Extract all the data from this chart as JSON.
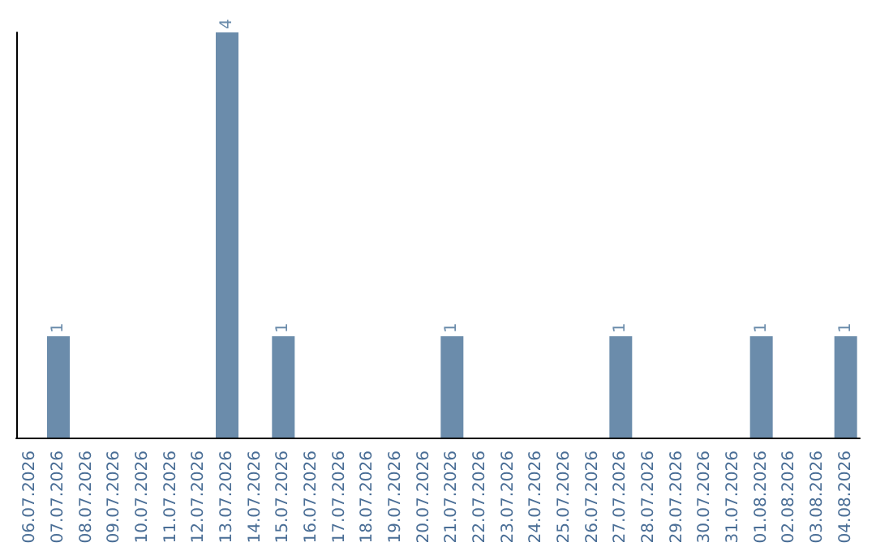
{
  "chart_data": {
    "type": "bar",
    "categories": [
      "06.07.2026",
      "07.07.2026",
      "08.07.2026",
      "09.07.2026",
      "10.07.2026",
      "11.07.2026",
      "12.07.2026",
      "13.07.2026",
      "14.07.2026",
      "15.07.2026",
      "16.07.2026",
      "17.07.2026",
      "18.07.2026",
      "19.07.2026",
      "20.07.2026",
      "21.07.2026",
      "22.07.2026",
      "23.07.2026",
      "24.07.2026",
      "25.07.2026",
      "26.07.2026",
      "27.07.2026",
      "28.07.2026",
      "29.07.2026",
      "30.07.2026",
      "31.07.2026",
      "01.08.2026",
      "02.08.2026",
      "03.08.2026",
      "04.08.2026"
    ],
    "values": [
      0,
      1,
      0,
      0,
      0,
      0,
      0,
      4,
      0,
      1,
      0,
      0,
      0,
      0,
      0,
      1,
      0,
      0,
      0,
      0,
      0,
      1,
      0,
      0,
      0,
      0,
      1,
      0,
      0,
      1
    ],
    "value_labels": [
      null,
      "1",
      null,
      null,
      null,
      null,
      null,
      "4",
      null,
      "1",
      null,
      null,
      null,
      null,
      null,
      "1",
      null,
      null,
      null,
      null,
      null,
      "1",
      null,
      null,
      null,
      null,
      "1",
      null,
      null,
      "1"
    ],
    "color": "#6b8cab",
    "tick_labels": "x",
    "grid": false
  }
}
